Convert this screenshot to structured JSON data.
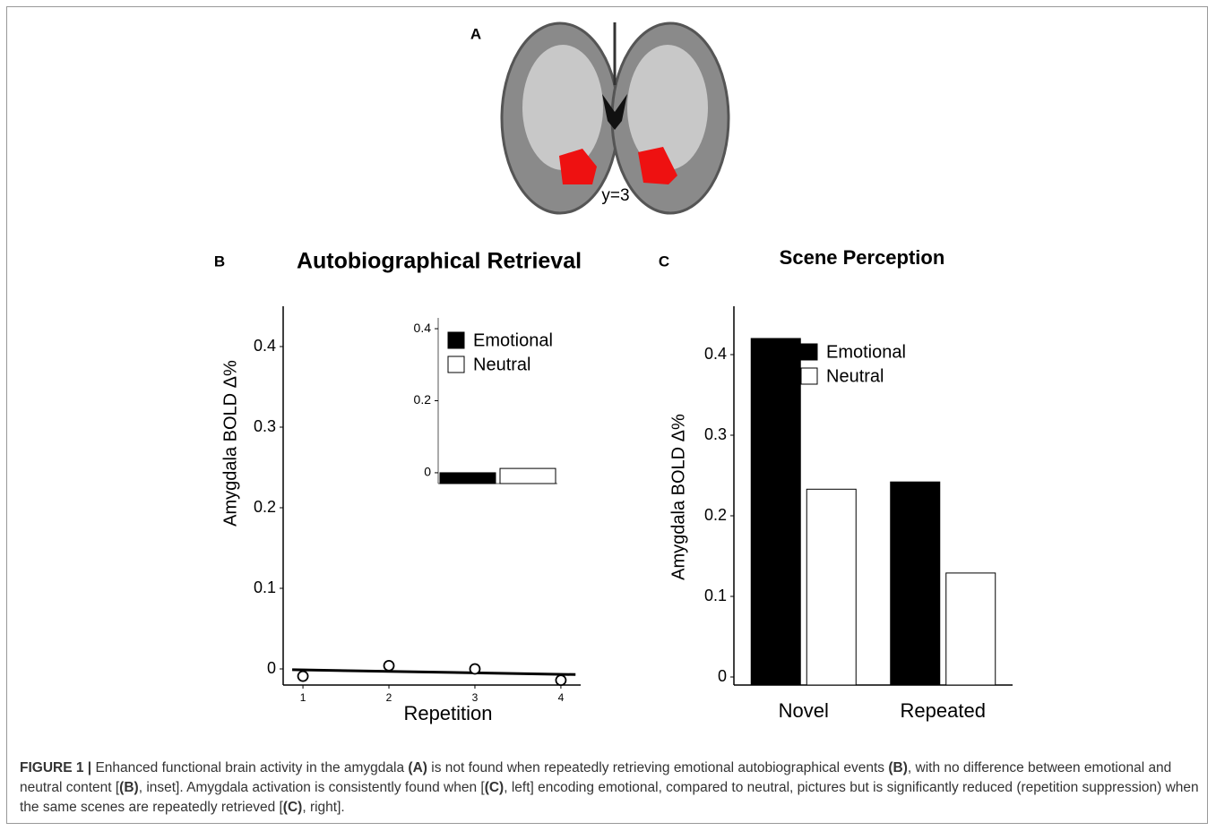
{
  "panels": [
    "A",
    "B",
    "C"
  ],
  "brain_image": {
    "label": "y=3"
  },
  "chart_data": [
    {
      "type": "scatter",
      "title": "Autobiographical Retrieval",
      "x_label": "Repetition",
      "y_label": "Amygdala BOLD Δ%",
      "x": [
        1,
        2,
        3,
        4
      ],
      "values": [
        -0.009,
        0.004,
        0,
        -0.014
      ],
      "color": "#000000",
      "trend_line": {
        "x": [
          0.875,
          4.17
        ],
        "values": [
          -0.001,
          -0.007
        ]
      },
      "xlim": [
        0.77,
        4.23
      ],
      "ylim": [
        -0.02,
        0.45
      ],
      "xticks": [
        1,
        2,
        3,
        4
      ],
      "yticks": [
        0,
        0.1,
        0.2,
        0.3,
        0.4
      ]
    },
    {
      "type": "bar",
      "categories": [
        null
      ],
      "series": [
        {
          "name": "Emotional",
          "color": "#000000",
          "values": [
            0
          ]
        },
        {
          "name": "Neutral",
          "color": "#ffffff",
          "values": [
            0.012
          ]
        }
      ],
      "ylim": [
        -0.03,
        0.43
      ],
      "yticks": [
        0,
        0.2,
        0.4
      ],
      "legend": "upper left"
    },
    {
      "type": "bar",
      "title": "Scene Perception",
      "y_label": "Amygdala BOLD Δ%",
      "categories": [
        "Novel",
        "Repeated"
      ],
      "series": [
        {
          "name": "Emotional",
          "color": "#000000",
          "values": [
            0.42,
            0.242
          ]
        },
        {
          "name": "Neutral",
          "color": "#ffffff",
          "values": [
            0.233,
            0.129
          ]
        }
      ],
      "ylim": [
        -0.01,
        0.46
      ],
      "yticks": [
        0,
        0.1,
        0.2,
        0.3,
        0.4
      ],
      "legend": "upper left"
    }
  ],
  "caption": [
    {
      "text": "FIGURE 1 |",
      "bold": true
    },
    {
      "text": " Enhanced functional brain activity in the amygdala ",
      "bold": false
    },
    {
      "text": "(A)",
      "bold": true
    },
    {
      "text": " is not found when repeatedly retrieving emotional autobiographical events ",
      "bold": false
    },
    {
      "text": "(B)",
      "bold": true
    },
    {
      "text": ", with no difference between emotional and neutral content [",
      "bold": false
    },
    {
      "text": "(B)",
      "bold": true
    },
    {
      "text": ", inset]. Amygdala activation is consistently found when [",
      "bold": false
    },
    {
      "text": "(C)",
      "bold": true
    },
    {
      "text": ", left] encoding emotional, compared to neutral, pictures but is significantly reduced (repetition suppression) when the same scenes are repeatedly retrieved [",
      "bold": false
    },
    {
      "text": "(C)",
      "bold": true
    },
    {
      "text": ", right].",
      "bold": false
    }
  ]
}
